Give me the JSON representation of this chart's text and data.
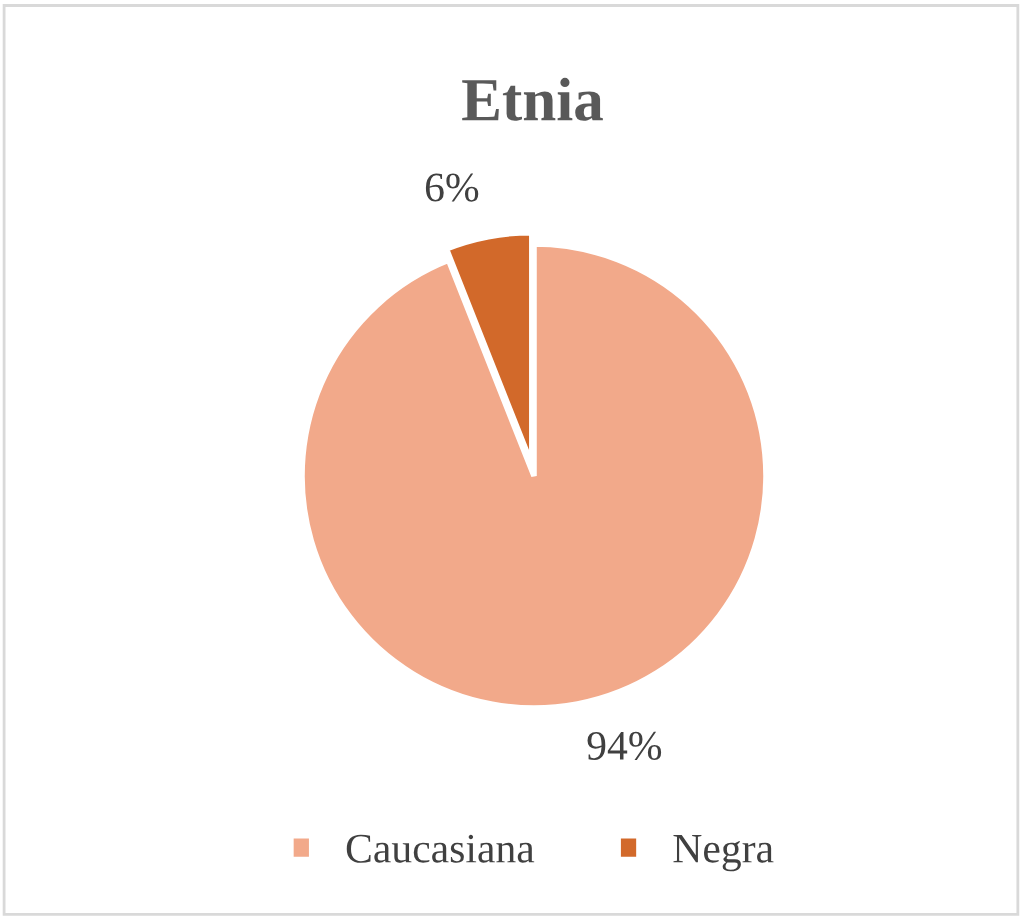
{
  "chart_data": {
    "type": "pie",
    "title": "Etnia",
    "categories": [
      "Caucasiana",
      "Negra"
    ],
    "values": [
      94,
      6
    ],
    "colors": [
      "#f2a98a",
      "#d2692a"
    ],
    "value_labels": [
      "94%",
      "6%"
    ],
    "legend": "bottom"
  }
}
